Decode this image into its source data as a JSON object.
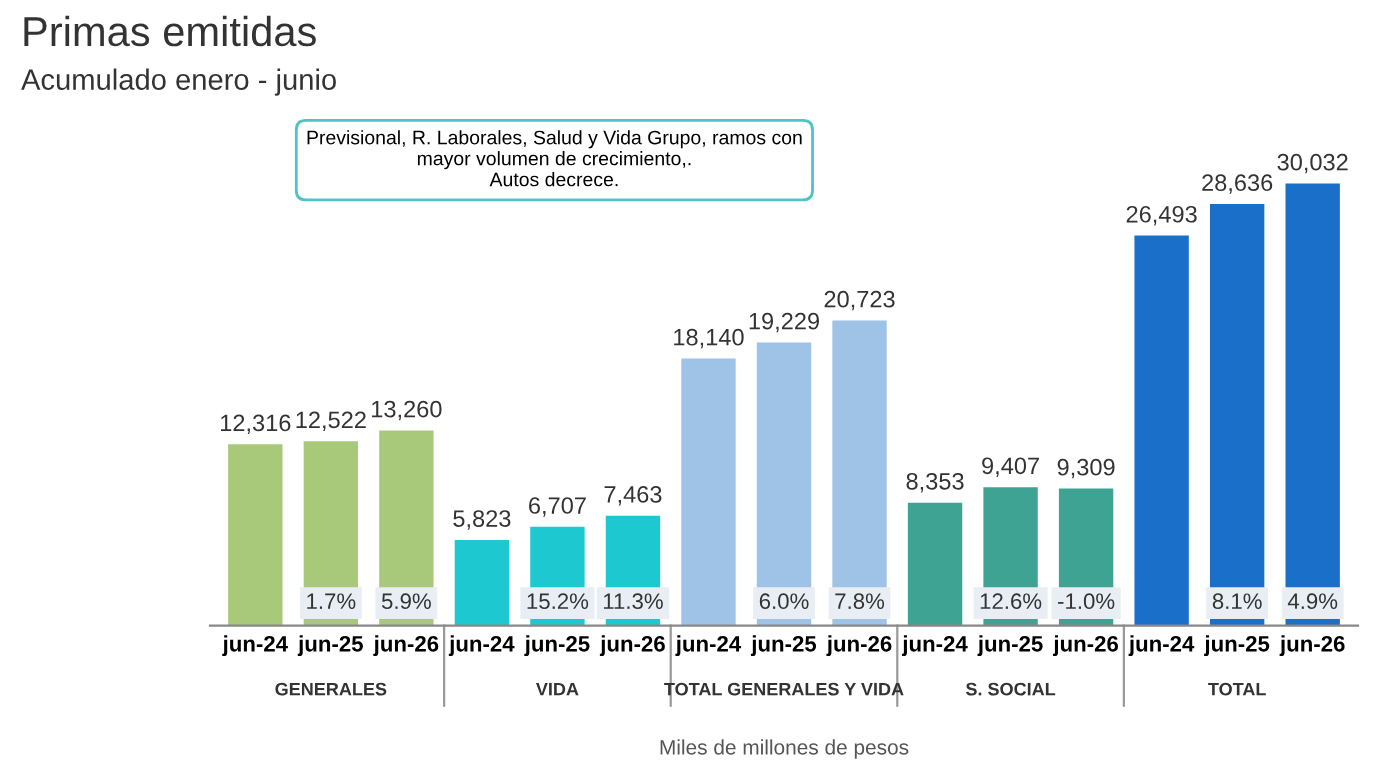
{
  "chart_data": {
    "type": "bar",
    "title": "Primas emitidas",
    "subtitle": "Acumulado enero - junio",
    "xlabel": "Miles de millones de pesos",
    "categories": [
      "jun-24",
      "jun-25",
      "jun-26",
      "jun-24",
      "jun-25",
      "jun-26",
      "jun-24",
      "jun-25",
      "jun-26",
      "jun-24",
      "jun-25",
      "jun-26",
      "jun-24",
      "jun-25",
      "jun-26"
    ],
    "values": [
      12316,
      12522,
      13260,
      5823,
      6707,
      7463,
      18140,
      19229,
      20723,
      8353,
      9407,
      9309,
      26493,
      28636,
      30032
    ],
    "value_labels": [
      "12,316",
      "12,522",
      "13,260",
      "5,823",
      "6,707",
      "7,463",
      "18,140",
      "19,229",
      "20,723",
      "8,353",
      "9,407",
      "9,309",
      "26,493",
      "28,636",
      "30,032"
    ],
    "colors": [
      "#a9c97a",
      "#a9c97a",
      "#a9c97a",
      "#1ec8d0",
      "#1ec8d0",
      "#1ec8d0",
      "#9ec3e6",
      "#9ec3e6",
      "#9ec3e6",
      "#3fa394",
      "#3fa394",
      "#3fa394",
      "#1a6fc9",
      "#1a6fc9",
      "#1a6fc9"
    ],
    "ylim": [
      0,
      34000
    ],
    "tick_labels": "x",
    "annotations": [
      "Previsional, R. Laborales, Salud y Vida Grupo, ramos con\nmayor volumen de crecimiento,.\nAutos decrece.",
      "GENERALES",
      "VIDA",
      "TOTAL GENERALES Y VIDA",
      "S. SOCIAL",
      "TOTAL",
      "1.7%",
      "5.9%",
      "15.2%",
      "11.3%",
      "6.0%",
      "7.8%",
      "12.6%",
      "-1.0%",
      "8.1%",
      "4.9%"
    ]
  }
}
